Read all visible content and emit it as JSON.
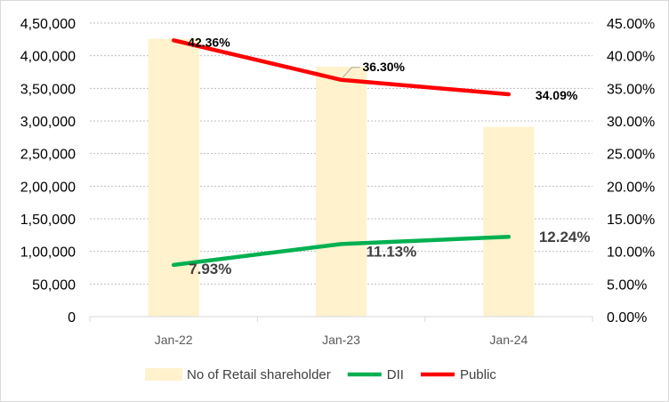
{
  "chart_data": {
    "type": "bar",
    "categories": [
      "Jan-22",
      "Jan-23",
      "Jan-24"
    ],
    "series": [
      {
        "name": "No of Retail shareholder",
        "type": "bar",
        "axis": "left",
        "color": "#fff2cc",
        "values": [
          426000,
          383000,
          291000
        ]
      },
      {
        "name": "DII",
        "type": "line",
        "axis": "right",
        "color": "#00b050",
        "values": [
          7.93,
          11.13,
          12.24
        ],
        "labels": [
          "7.93%",
          "11.13%",
          "12.24%"
        ]
      },
      {
        "name": "Public",
        "type": "line",
        "axis": "right",
        "color": "#ff0000",
        "values": [
          42.36,
          36.3,
          34.09
        ],
        "labels": [
          "42.36%",
          "36.30%",
          "34.09%"
        ]
      }
    ],
    "left_axis": {
      "min": 0,
      "max": 450000,
      "ticks": [
        0,
        50000,
        100000,
        150000,
        200000,
        250000,
        300000,
        350000,
        400000,
        450000
      ],
      "tick_labels": [
        "0",
        "50,000",
        "1,00,000",
        "1,50,000",
        "2,00,000",
        "2,50,000",
        "3,00,000",
        "3,50,000",
        "4,00,000",
        "4,50,000"
      ]
    },
    "right_axis": {
      "min": 0,
      "max": 45,
      "ticks": [
        0,
        5,
        10,
        15,
        20,
        25,
        30,
        35,
        40,
        45
      ],
      "tick_labels": [
        "0.00%",
        "5.00%",
        "10.00%",
        "15.00%",
        "20.00%",
        "25.00%",
        "30.00%",
        "35.00%",
        "40.00%",
        "45.00%"
      ]
    },
    "grid": true,
    "legend_position": "bottom"
  }
}
